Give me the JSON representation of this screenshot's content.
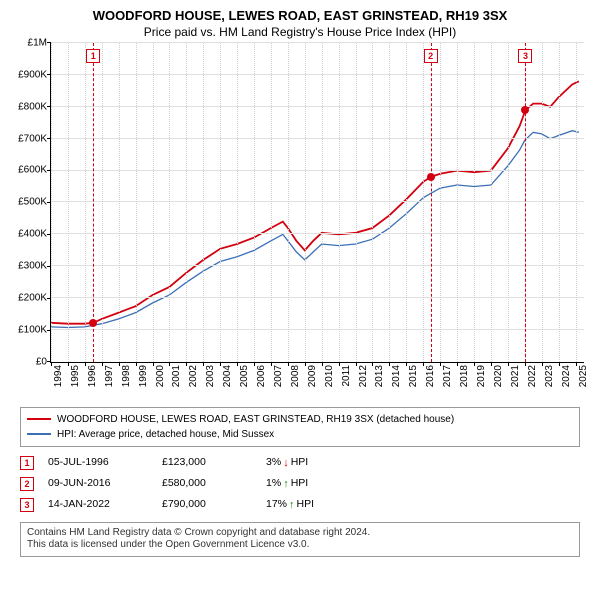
{
  "title": "WOODFORD HOUSE, LEWES ROAD, EAST GRINSTEAD, RH19 3SX",
  "subtitle": "Price paid vs. HM Land Registry's House Price Index (HPI)",
  "chart": {
    "type": "line",
    "background_color": "#ffffff",
    "grid_color": "#e0e0e0",
    "xgrid_color": "#d0d0d0",
    "axis_color": "#000000",
    "ylim": [
      0,
      1000000
    ],
    "ytick_step": 100000,
    "ylabels": [
      "£0",
      "£100K",
      "£200K",
      "£300K",
      "£400K",
      "£500K",
      "£600K",
      "£700K",
      "£800K",
      "£900K",
      "£1M"
    ],
    "xlim": [
      1994,
      2025.5
    ],
    "xticks": [
      1994,
      1995,
      1996,
      1997,
      1998,
      1999,
      2000,
      2001,
      2002,
      2003,
      2004,
      2005,
      2006,
      2007,
      2008,
      2009,
      2010,
      2011,
      2012,
      2013,
      2014,
      2015,
      2016,
      2017,
      2018,
      2019,
      2020,
      2021,
      2022,
      2023,
      2024,
      2025
    ],
    "label_fontsize": 10,
    "title_fontsize": 13,
    "series": [
      {
        "name": "property",
        "label": "WOODFORD HOUSE, LEWES ROAD, EAST GRINSTEAD, RH19 3SX (detached house)",
        "color": "#d4000f",
        "line_width": 1.8,
        "points": [
          [
            1994,
            123000
          ],
          [
            1995,
            120000
          ],
          [
            1996,
            120000
          ],
          [
            1996.5,
            123000
          ],
          [
            1997,
            135000
          ],
          [
            1998,
            155000
          ],
          [
            1999,
            175000
          ],
          [
            2000,
            210000
          ],
          [
            2001,
            235000
          ],
          [
            2002,
            280000
          ],
          [
            2003,
            320000
          ],
          [
            2004,
            355000
          ],
          [
            2005,
            370000
          ],
          [
            2006,
            390000
          ],
          [
            2007,
            420000
          ],
          [
            2007.7,
            440000
          ],
          [
            2008,
            420000
          ],
          [
            2008.5,
            380000
          ],
          [
            2009,
            350000
          ],
          [
            2009.5,
            380000
          ],
          [
            2010,
            405000
          ],
          [
            2011,
            400000
          ],
          [
            2012,
            405000
          ],
          [
            2013,
            420000
          ],
          [
            2014,
            460000
          ],
          [
            2015,
            510000
          ],
          [
            2016,
            565000
          ],
          [
            2016.44,
            580000
          ],
          [
            2017,
            590000
          ],
          [
            2018,
            600000
          ],
          [
            2019,
            595000
          ],
          [
            2020,
            600000
          ],
          [
            2021,
            670000
          ],
          [
            2021.7,
            740000
          ],
          [
            2022.04,
            790000
          ],
          [
            2022.5,
            810000
          ],
          [
            2023,
            810000
          ],
          [
            2023.5,
            800000
          ],
          [
            2024,
            830000
          ],
          [
            2024.8,
            870000
          ],
          [
            2025.2,
            880000
          ]
        ]
      },
      {
        "name": "hpi",
        "label": "HPI: Average price, detached house, Mid Sussex",
        "color": "#3b6fb6",
        "line_width": 1.3,
        "points": [
          [
            1994,
            110000
          ],
          [
            1995,
            108000
          ],
          [
            1996,
            110000
          ],
          [
            1997,
            120000
          ],
          [
            1998,
            135000
          ],
          [
            1999,
            155000
          ],
          [
            2000,
            185000
          ],
          [
            2001,
            210000
          ],
          [
            2002,
            250000
          ],
          [
            2003,
            285000
          ],
          [
            2004,
            315000
          ],
          [
            2005,
            330000
          ],
          [
            2006,
            350000
          ],
          [
            2007,
            380000
          ],
          [
            2007.7,
            400000
          ],
          [
            2008,
            380000
          ],
          [
            2008.5,
            345000
          ],
          [
            2009,
            320000
          ],
          [
            2009.5,
            345000
          ],
          [
            2010,
            370000
          ],
          [
            2011,
            365000
          ],
          [
            2012,
            370000
          ],
          [
            2013,
            385000
          ],
          [
            2014,
            420000
          ],
          [
            2015,
            465000
          ],
          [
            2016,
            515000
          ],
          [
            2017,
            545000
          ],
          [
            2018,
            555000
          ],
          [
            2019,
            550000
          ],
          [
            2020,
            555000
          ],
          [
            2021,
            615000
          ],
          [
            2021.7,
            665000
          ],
          [
            2022,
            695000
          ],
          [
            2022.5,
            720000
          ],
          [
            2023,
            715000
          ],
          [
            2023.5,
            700000
          ],
          [
            2024,
            710000
          ],
          [
            2024.8,
            725000
          ],
          [
            2025.2,
            720000
          ]
        ]
      }
    ],
    "markers": [
      {
        "n": "1",
        "year": 1996.5,
        "price": 123000,
        "color": "#d4000f"
      },
      {
        "n": "2",
        "year": 2016.44,
        "price": 580000,
        "color": "#d4000f"
      },
      {
        "n": "3",
        "year": 2022.04,
        "price": 790000,
        "color": "#d4000f"
      }
    ],
    "marker_dot_color": "#d4000f"
  },
  "legend": {
    "border_color": "#999999",
    "items": [
      {
        "color": "#d4000f",
        "label": "WOODFORD HOUSE, LEWES ROAD, EAST GRINSTEAD, RH19 3SX (detached house)"
      },
      {
        "color": "#3b6fb6",
        "label": "HPI: Average price, detached house, Mid Sussex"
      }
    ]
  },
  "events": [
    {
      "n": "1",
      "color": "#d4000f",
      "date": "05-JUL-1996",
      "price": "£123,000",
      "change_pct": "3%",
      "arrow": "↓",
      "arrow_color": "#d4000f",
      "suffix": "HPI"
    },
    {
      "n": "2",
      "color": "#d4000f",
      "date": "09-JUN-2016",
      "price": "£580,000",
      "change_pct": "1%",
      "arrow": "↑",
      "arrow_color": "#1a8a1a",
      "suffix": "HPI"
    },
    {
      "n": "3",
      "color": "#d4000f",
      "date": "14-JAN-2022",
      "price": "£790,000",
      "change_pct": "17%",
      "arrow": "↑",
      "arrow_color": "#1a8a1a",
      "suffix": "HPI"
    }
  ],
  "license": {
    "line1": "Contains HM Land Registry data © Crown copyright and database right 2024.",
    "line2": "This data is licensed under the Open Government Licence v3.0."
  }
}
